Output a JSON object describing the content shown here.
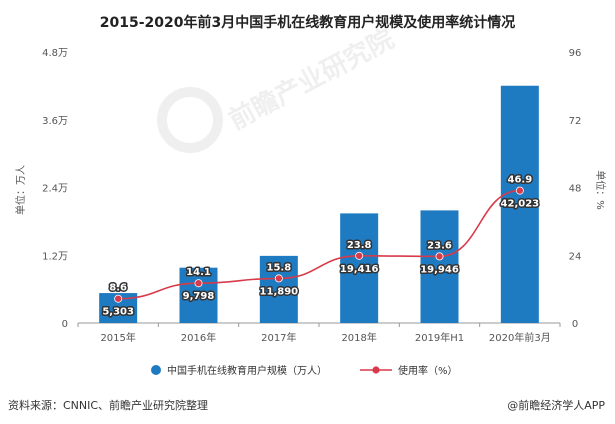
{
  "chart_data": {
    "type": "bar",
    "title": "2015-2020年前3月中国手机在线教育用户规模及使用率统计情况",
    "categories": [
      "2015年",
      "2016年",
      "2017年",
      "2018年",
      "2019年H1",
      "2020年前3月"
    ],
    "left_axis": {
      "label": "单位：万人",
      "ticks": [
        "0",
        "1.2万",
        "2.4万",
        "3.6万",
        "4.8万"
      ],
      "range": [
        0,
        48000
      ]
    },
    "right_axis": {
      "label": "单位：%",
      "ticks": [
        "0",
        "24",
        "48",
        "72",
        "96"
      ],
      "range": [
        0,
        96
      ]
    },
    "series": [
      {
        "name": "中国手机在线教育用户规模（万人）",
        "type": "bar",
        "axis": "left",
        "color": "#1f7bc1",
        "values": [
          5303,
          9798,
          11890,
          19416,
          19946,
          42023
        ],
        "labels": [
          "5,303",
          "9,798",
          "11,890",
          "19,416",
          "19,946",
          "42,023"
        ]
      },
      {
        "name": "使用率（%）",
        "type": "line",
        "axis": "right",
        "color": "#d83a4a",
        "values": [
          8.6,
          14.1,
          15.8,
          23.8,
          23.6,
          46.9
        ],
        "labels": [
          "8.6",
          "14.1",
          "15.8",
          "23.8",
          "23.6",
          "46.9"
        ]
      }
    ],
    "grid": false,
    "legend_position": "bottom"
  },
  "footer": {
    "source": "资料来源：CNNIC、前瞻产业研究院整理",
    "brand": "@前瞻经济学人APP"
  },
  "watermark": "前瞻产业研究院"
}
